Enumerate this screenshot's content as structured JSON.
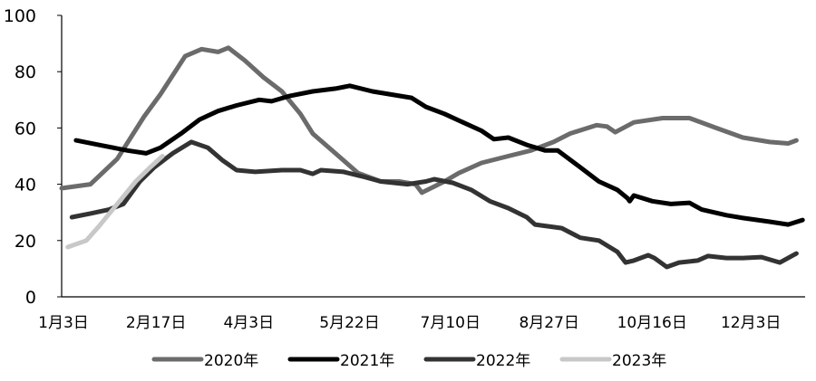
{
  "chart_data": {
    "type": "line",
    "title": "",
    "xlabel": "",
    "ylabel": "",
    "ylim": [
      0,
      100
    ],
    "yticks": [
      "0",
      "20",
      "40",
      "60",
      "80",
      "100"
    ],
    "xtick_labels": [
      "1月3日",
      "2月17日",
      "4月3日",
      "5月22日",
      "7月10日",
      "8月27日",
      "10月16日",
      "12月3日"
    ],
    "xtick_dates": [
      "01-03",
      "02-17",
      "04-03",
      "05-22",
      "07-10",
      "08-27",
      "10-16",
      "12-03"
    ],
    "xlim": [
      "01-03",
      "12-31"
    ],
    "grid": false,
    "legend_position": "bottom",
    "series": [
      {
        "name": "2020年",
        "color": "#6b6b6b",
        "points": [
          [
            "01-03",
            38.6
          ],
          [
            "01-17",
            40
          ],
          [
            "01-30",
            49
          ],
          [
            "02-12",
            64
          ],
          [
            "02-20",
            72
          ],
          [
            "03-04",
            85.5
          ],
          [
            "03-12",
            88
          ],
          [
            "03-20",
            87
          ],
          [
            "03-25",
            88.5
          ],
          [
            "04-02",
            84
          ],
          [
            "04-11",
            78
          ],
          [
            "04-20",
            73
          ],
          [
            "04-29",
            65
          ],
          [
            "05-05",
            58
          ],
          [
            "05-16",
            51
          ],
          [
            "05-27",
            44
          ],
          [
            "06-07",
            41
          ],
          [
            "06-16",
            41
          ],
          [
            "06-24",
            40
          ],
          [
            "06-27",
            37
          ],
          [
            "07-08",
            41
          ],
          [
            "07-15",
            44
          ],
          [
            "07-26",
            47.6
          ],
          [
            "08-08",
            50
          ],
          [
            "08-19",
            52
          ],
          [
            "08-30",
            55
          ],
          [
            "09-07",
            58
          ],
          [
            "09-20",
            61
          ],
          [
            "09-25",
            60.5
          ],
          [
            "09-29",
            58.5
          ],
          [
            "10-08",
            62
          ],
          [
            "10-22",
            63.5
          ],
          [
            "11-04",
            63.5
          ],
          [
            "11-17",
            60
          ],
          [
            "11-30",
            56.6
          ],
          [
            "12-13",
            55
          ],
          [
            "12-22",
            54.5
          ],
          [
            "12-26",
            55.6
          ]
        ]
      },
      {
        "name": "2021年",
        "color": "#000000",
        "points": [
          [
            "01-10",
            55.6
          ],
          [
            "01-21",
            54
          ],
          [
            "02-04",
            52
          ],
          [
            "02-13",
            51
          ],
          [
            "02-20",
            53
          ],
          [
            "03-02",
            58
          ],
          [
            "03-11",
            63
          ],
          [
            "03-20",
            66
          ],
          [
            "03-29",
            68
          ],
          [
            "04-09",
            70
          ],
          [
            "04-15",
            69.5
          ],
          [
            "04-24",
            71.4
          ],
          [
            "05-05",
            73
          ],
          [
            "05-16",
            74
          ],
          [
            "05-23",
            75
          ],
          [
            "06-03",
            73
          ],
          [
            "06-16",
            71.4
          ],
          [
            "06-22",
            70.7
          ],
          [
            "06-29",
            67.5
          ],
          [
            "07-08",
            65
          ],
          [
            "07-17",
            62
          ],
          [
            "07-26",
            59
          ],
          [
            "08-01",
            56
          ],
          [
            "08-08",
            56.6
          ],
          [
            "08-17",
            54
          ],
          [
            "08-26",
            52
          ],
          [
            "09-01",
            52
          ],
          [
            "09-12",
            46
          ],
          [
            "09-21",
            41
          ],
          [
            "09-30",
            38
          ],
          [
            "10-05",
            35
          ],
          [
            "10-06",
            34
          ],
          [
            "10-08",
            36
          ],
          [
            "10-17",
            34
          ],
          [
            "10-26",
            33
          ],
          [
            "11-04",
            33.4
          ],
          [
            "11-10",
            31
          ],
          [
            "11-22",
            29
          ],
          [
            "11-30",
            28
          ],
          [
            "12-13",
            26.7
          ],
          [
            "12-22",
            25.7
          ],
          [
            "12-29",
            27.3
          ]
        ]
      },
      {
        "name": "2022年",
        "color": "#333333",
        "points": [
          [
            "01-08",
            28.3
          ],
          [
            "01-17",
            29.6
          ],
          [
            "01-26",
            31
          ],
          [
            "02-02",
            33
          ],
          [
            "02-10",
            41
          ],
          [
            "02-17",
            46
          ],
          [
            "02-26",
            51
          ],
          [
            "03-07",
            55
          ],
          [
            "03-15",
            53
          ],
          [
            "03-22",
            48.6
          ],
          [
            "03-29",
            45
          ],
          [
            "04-07",
            44.4
          ],
          [
            "04-20",
            45
          ],
          [
            "04-29",
            45
          ],
          [
            "05-05",
            43.7
          ],
          [
            "05-09",
            45
          ],
          [
            "05-20",
            44.4
          ],
          [
            "05-29",
            42.8
          ],
          [
            "06-07",
            41
          ],
          [
            "06-20",
            40
          ],
          [
            "06-29",
            41
          ],
          [
            "07-03",
            41.8
          ],
          [
            "07-12",
            40.5
          ],
          [
            "07-21",
            38
          ],
          [
            "07-30",
            34
          ],
          [
            "08-08",
            31.5
          ],
          [
            "08-17",
            28.3
          ],
          [
            "08-21",
            25.7
          ],
          [
            "08-30",
            24.8
          ],
          [
            "09-03",
            24.4
          ],
          [
            "09-12",
            21
          ],
          [
            "09-21",
            20
          ],
          [
            "09-30",
            16
          ],
          [
            "10-04",
            12.2
          ],
          [
            "10-08",
            12.9
          ],
          [
            "10-15",
            14.8
          ],
          [
            "10-18",
            13.8
          ],
          [
            "10-24",
            10.6
          ],
          [
            "10-30",
            12.2
          ],
          [
            "11-08",
            12.9
          ],
          [
            "11-13",
            14.5
          ],
          [
            "11-22",
            13.8
          ],
          [
            "11-30",
            13.8
          ],
          [
            "12-09",
            14.1
          ],
          [
            "12-18",
            12.2
          ],
          [
            "12-26",
            15.4
          ]
        ]
      },
      {
        "name": "2023年",
        "color": "#c8c8c8",
        "points": [
          [
            "01-06",
            17.7
          ],
          [
            "01-15",
            20
          ],
          [
            "01-21",
            25
          ],
          [
            "01-30",
            33
          ],
          [
            "02-08",
            41
          ],
          [
            "02-15",
            46
          ],
          [
            "02-21",
            50
          ]
        ]
      }
    ]
  }
}
